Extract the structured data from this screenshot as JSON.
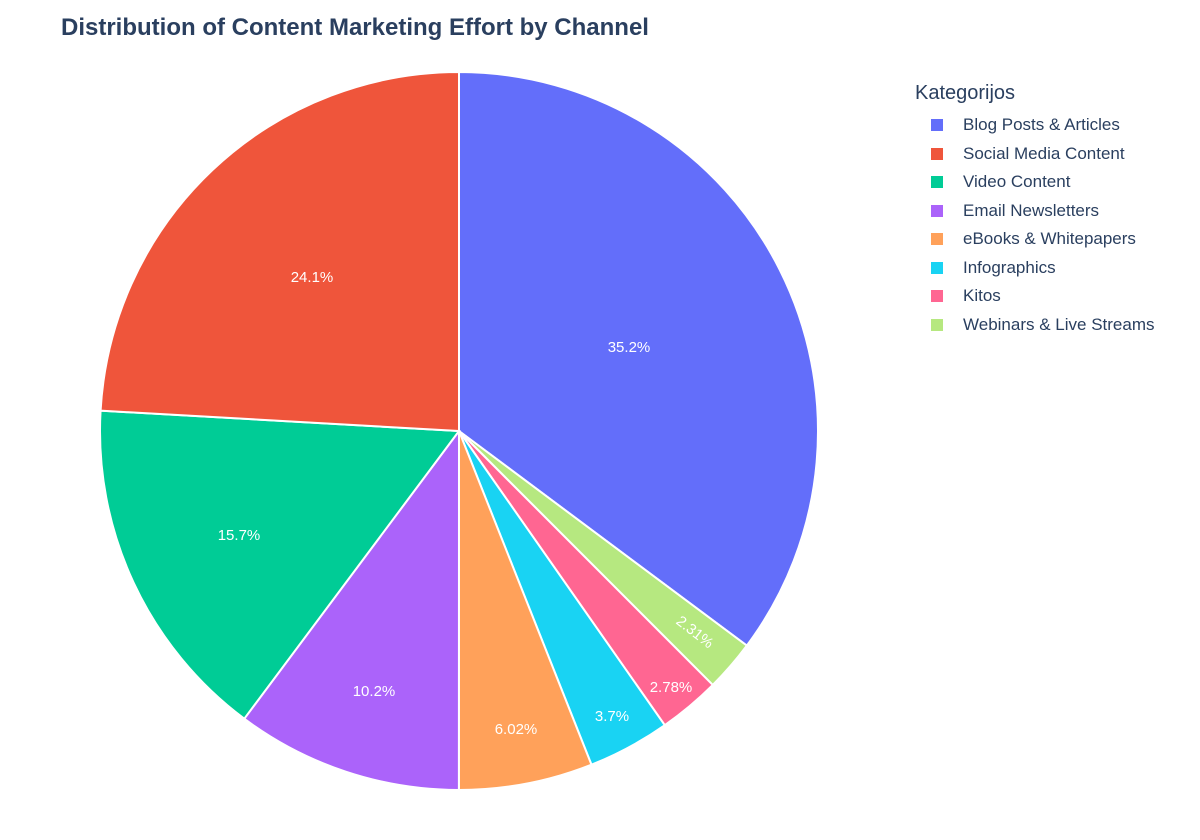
{
  "chart_data": {
    "type": "pie",
    "title": "Distribution of Content Marketing Effort by Channel",
    "legend_title": "Kategorijos",
    "legend_position": "right",
    "categories": [
      "Blog Posts & Articles",
      "Social Media Content",
      "Video Content",
      "Email Newsletters",
      "eBooks & Whitepapers",
      "Infographics",
      "Kitos",
      "Webinars & Live Streams"
    ],
    "values": [
      35.2,
      24.1,
      15.7,
      10.2,
      6.02,
      3.7,
      2.78,
      2.31
    ],
    "labels": [
      "35.2%",
      "24.1%",
      "15.7%",
      "10.2%",
      "6.02%",
      "3.7%",
      "2.78%",
      "2.31%"
    ],
    "colors": [
      "#636efa",
      "#ef553b",
      "#00cc96",
      "#ab63fa",
      "#ffa15a",
      "#19d3f3",
      "#ff6692",
      "#b6e880"
    ]
  }
}
